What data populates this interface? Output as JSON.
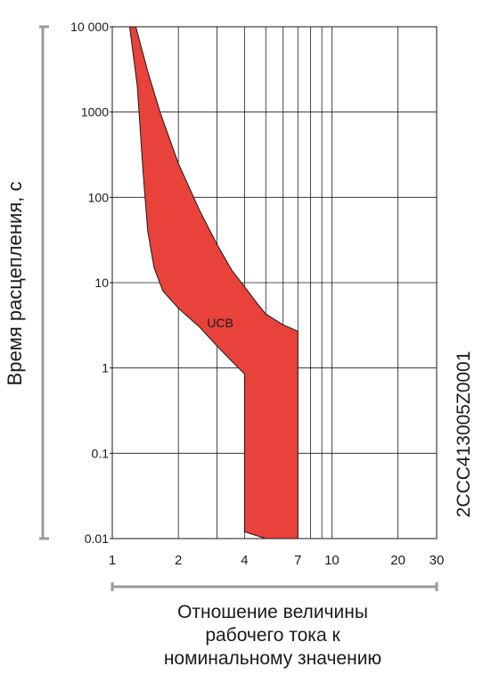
{
  "chart_data": {
    "type": "area",
    "x_scale": "log",
    "y_scale": "log",
    "xlim": [
      1,
      30
    ],
    "ylim": [
      0.01,
      10000
    ],
    "x_ticks": [
      1,
      2,
      4,
      7,
      10,
      20,
      30
    ],
    "x_tick_labels": [
      "1",
      "2",
      "4",
      "7",
      "10",
      "20",
      "30"
    ],
    "x_minor_grid": [
      3,
      5,
      6,
      8,
      9
    ],
    "y_ticks": [
      0.01,
      0.1,
      1,
      10,
      100,
      1000,
      10000
    ],
    "y_tick_labels": [
      "0.01",
      "0.1",
      "1",
      "10",
      "100",
      "1000",
      "10 000"
    ],
    "ylabel": "Время расцепления, с",
    "xlabel_lines": [
      "Отношение величины",
      "рабочего тока к",
      "номинальному значению"
    ],
    "grid": true,
    "fill_color": "#e8423a",
    "series": [
      {
        "name": "UCB",
        "upper": [
          {
            "x": 1.28,
            "y": 10000
          },
          {
            "x": 1.45,
            "y": 3000
          },
          {
            "x": 1.65,
            "y": 1000
          },
          {
            "x": 2.0,
            "y": 250
          },
          {
            "x": 2.5,
            "y": 70
          },
          {
            "x": 3.0,
            "y": 28
          },
          {
            "x": 3.5,
            "y": 14
          },
          {
            "x": 4.0,
            "y": 9
          },
          {
            "x": 4.5,
            "y": 6
          },
          {
            "x": 5.0,
            "y": 4.3
          },
          {
            "x": 6.0,
            "y": 3.2
          },
          {
            "x": 7.0,
            "y": 2.7
          },
          {
            "x": 7.0,
            "y": 0.01
          }
        ],
        "lower": [
          {
            "x": 5.0,
            "y": 0.01
          },
          {
            "x": 4.0,
            "y": 0.012
          },
          {
            "x": 4.0,
            "y": 0.85
          },
          {
            "x": 3.5,
            "y": 1.2
          },
          {
            "x": 3.0,
            "y": 1.8
          },
          {
            "x": 2.5,
            "y": 3
          },
          {
            "x": 2.0,
            "y": 5
          },
          {
            "x": 1.7,
            "y": 8
          },
          {
            "x": 1.55,
            "y": 15
          },
          {
            "x": 1.45,
            "y": 40
          },
          {
            "x": 1.38,
            "y": 200
          },
          {
            "x": 1.3,
            "y": 2000
          },
          {
            "x": 1.2,
            "y": 10000
          }
        ]
      }
    ],
    "region_label": {
      "text": "UCB",
      "x": 3.1,
      "y": 3.4
    }
  },
  "figure_code": "2CCC413005Z0001"
}
